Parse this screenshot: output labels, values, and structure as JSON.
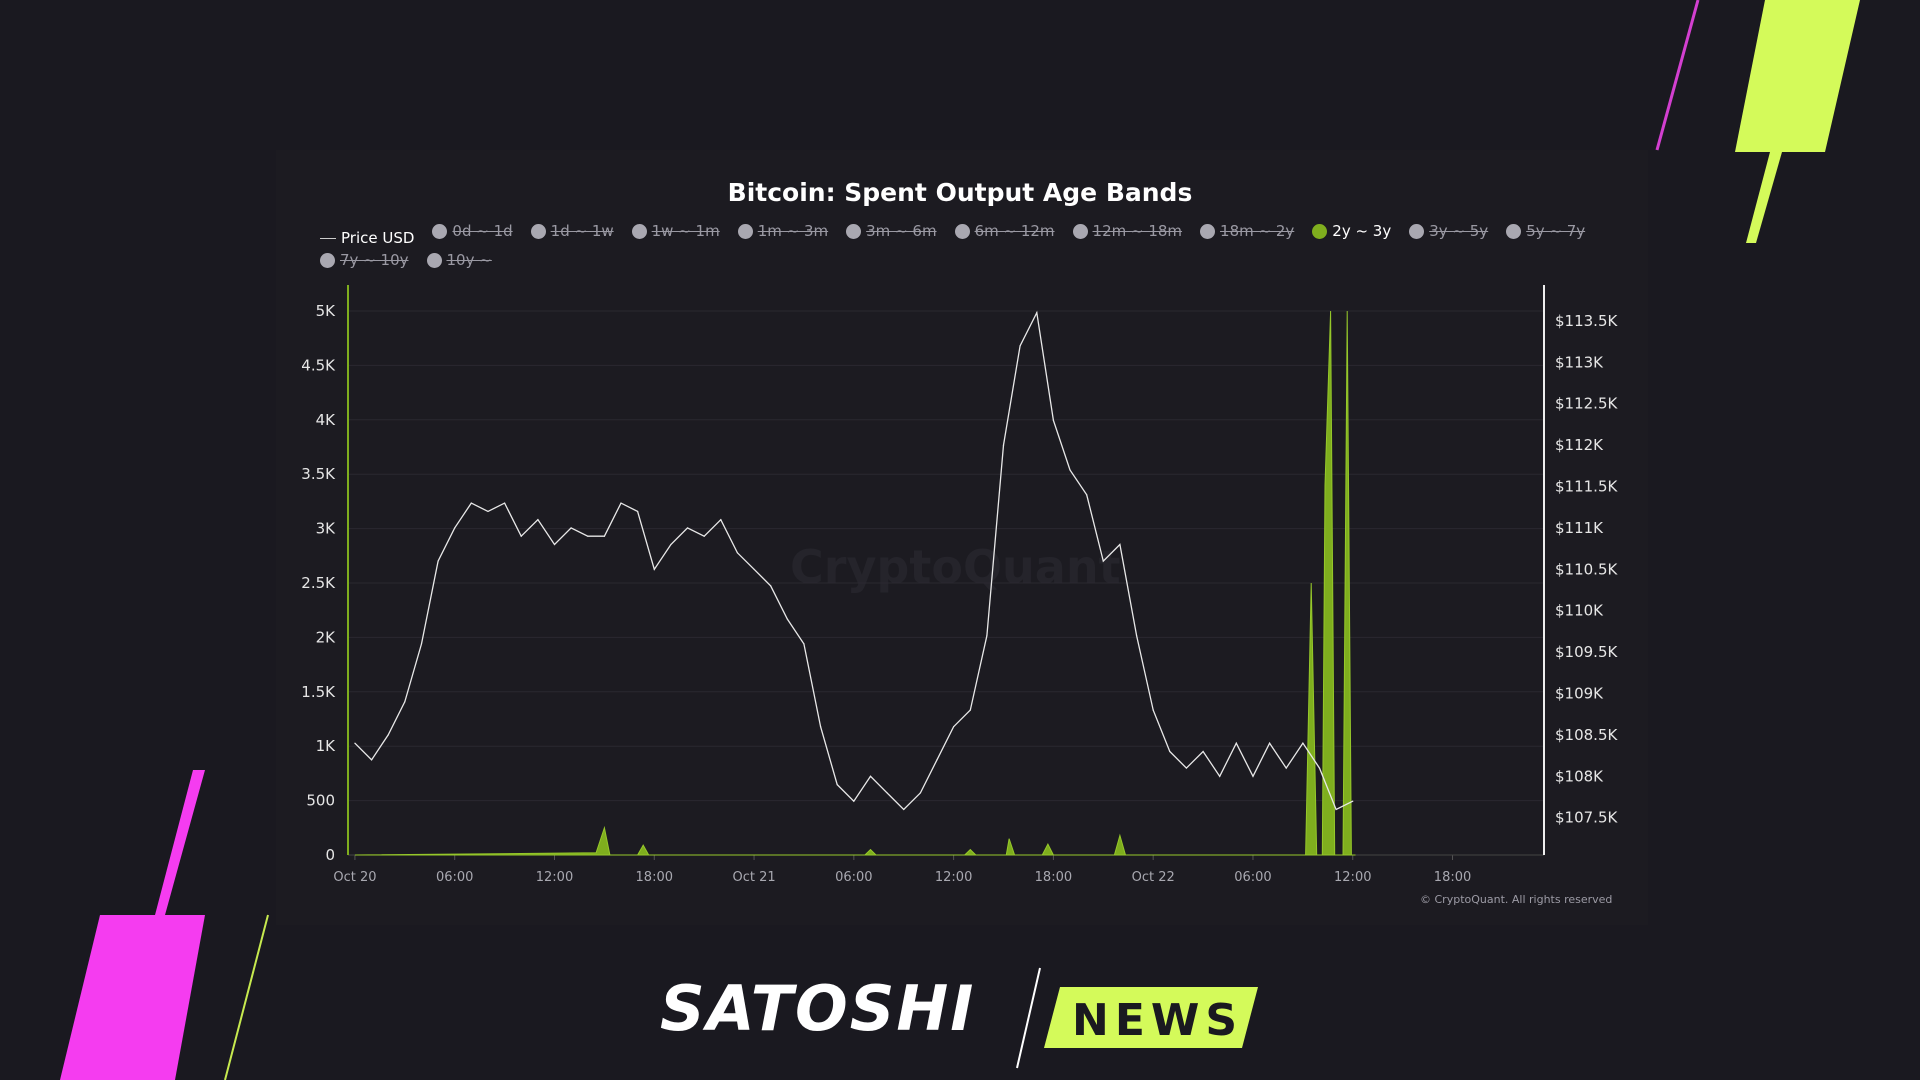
{
  "chart_data": {
    "type": "area+line",
    "title": "Bitcoin: Spent Output Age Bands",
    "legend": [
      {
        "label": "Price USD",
        "active": true,
        "marker": "line"
      },
      {
        "label": "0d ~ 1d",
        "active": false
      },
      {
        "label": "1d ~ 1w",
        "active": false
      },
      {
        "label": "1w ~ 1m",
        "active": false
      },
      {
        "label": "1m ~ 3m",
        "active": false
      },
      {
        "label": "3m ~ 6m",
        "active": false
      },
      {
        "label": "6m ~ 12m",
        "active": false
      },
      {
        "label": "12m ~ 18m",
        "active": false
      },
      {
        "label": "18m ~ 2y",
        "active": false
      },
      {
        "label": "2y ~ 3y",
        "active": true
      },
      {
        "label": "3y ~ 5y",
        "active": false
      },
      {
        "label": "5y ~ 7y",
        "active": false
      },
      {
        "label": "7y ~ 10y",
        "active": false
      },
      {
        "label": "10y ~",
        "active": false
      }
    ],
    "legend_placement": "top-left",
    "grid": true,
    "x_ticks": [
      "Oct 20",
      "06:00",
      "12:00",
      "18:00",
      "Oct 21",
      "06:00",
      "12:00",
      "18:00",
      "Oct 22",
      "06:00",
      "12:00",
      "18:00"
    ],
    "x_tick_times": [
      "10-20 00:00",
      "10-20 06:00",
      "10-20 12:00",
      "10-20 18:00",
      "10-21 00:00",
      "10-21 06:00",
      "10-21 12:00",
      "10-21 18:00",
      "10-22 00:00",
      "10-22 06:00",
      "10-22 12:00",
      "10-22 18:00"
    ],
    "xlim": [
      "10-19 23:35",
      "10-22 23:30"
    ],
    "y_left": {
      "ticks": [
        "0",
        "500",
        "1K",
        "1.5K",
        "2K",
        "2.5K",
        "3K",
        "3.5K",
        "4K",
        "4.5K",
        "5K"
      ],
      "ylim": [
        0,
        5000
      ]
    },
    "y_right": {
      "ticks": [
        "$107.5K",
        "$108K",
        "$108.5K",
        "$109K",
        "$109.5K",
        "$110K",
        "$110.5K",
        "$111K",
        "$111.5K",
        "$112K",
        "$112.5K",
        "$113K",
        "$113.5K"
      ],
      "tick_values": [
        107500,
        108000,
        108500,
        109000,
        109500,
        110000,
        110500,
        111000,
        111500,
        112000,
        112500,
        113000,
        113500
      ],
      "ylim": [
        107050,
        113620
      ]
    },
    "series": [
      {
        "name": "Price USD",
        "axis": "right",
        "color": "#e8e8e8",
        "type": "line",
        "points": [
          [
            "10-20 00:00",
            108400
          ],
          [
            "10-20 01:00",
            108200
          ],
          [
            "10-20 02:00",
            108500
          ],
          [
            "10-20 03:00",
            108900
          ],
          [
            "10-20 04:00",
            109600
          ],
          [
            "10-20 05:00",
            110600
          ],
          [
            "10-20 06:00",
            111000
          ],
          [
            "10-20 07:00",
            111300
          ],
          [
            "10-20 08:00",
            111200
          ],
          [
            "10-20 09:00",
            111300
          ],
          [
            "10-20 10:00",
            110900
          ],
          [
            "10-20 11:00",
            111100
          ],
          [
            "10-20 12:00",
            110800
          ],
          [
            "10-20 13:00",
            111000
          ],
          [
            "10-20 14:00",
            110900
          ],
          [
            "10-20 15:00",
            110900
          ],
          [
            "10-20 16:00",
            111300
          ],
          [
            "10-20 17:00",
            111200
          ],
          [
            "10-20 18:00",
            110500
          ],
          [
            "10-20 19:00",
            110800
          ],
          [
            "10-20 20:00",
            111000
          ],
          [
            "10-20 21:00",
            110900
          ],
          [
            "10-20 22:00",
            111100
          ],
          [
            "10-20 23:00",
            110700
          ],
          [
            "10-21 00:00",
            110500
          ],
          [
            "10-21 01:00",
            110300
          ],
          [
            "10-21 02:00",
            109900
          ],
          [
            "10-21 03:00",
            109600
          ],
          [
            "10-21 04:00",
            108600
          ],
          [
            "10-21 05:00",
            107900
          ],
          [
            "10-21 06:00",
            107700
          ],
          [
            "10-21 07:00",
            108000
          ],
          [
            "10-21 08:00",
            107800
          ],
          [
            "10-21 09:00",
            107600
          ],
          [
            "10-21 10:00",
            107800
          ],
          [
            "10-21 11:00",
            108200
          ],
          [
            "10-21 12:00",
            108600
          ],
          [
            "10-21 13:00",
            108800
          ],
          [
            "10-21 14:00",
            109700
          ],
          [
            "10-21 15:00",
            112000
          ],
          [
            "10-21 16:00",
            113200
          ],
          [
            "10-21 17:00",
            113600
          ],
          [
            "10-21 18:00",
            112300
          ],
          [
            "10-21 19:00",
            111700
          ],
          [
            "10-21 20:00",
            111400
          ],
          [
            "10-21 21:00",
            110600
          ],
          [
            "10-21 22:00",
            110800
          ],
          [
            "10-21 23:00",
            109700
          ],
          [
            "10-22 00:00",
            108800
          ],
          [
            "10-22 01:00",
            108300
          ],
          [
            "10-22 02:00",
            108100
          ],
          [
            "10-22 03:00",
            108300
          ],
          [
            "10-22 04:00",
            108000
          ],
          [
            "10-22 05:00",
            108400
          ],
          [
            "10-22 06:00",
            108000
          ],
          [
            "10-22 07:00",
            108400
          ],
          [
            "10-22 08:00",
            108100
          ],
          [
            "10-22 09:00",
            108400
          ],
          [
            "10-22 10:00",
            108100
          ],
          [
            "10-22 11:00",
            107600
          ],
          [
            "10-22 12:00",
            107700
          ]
        ]
      },
      {
        "name": "2y ~ 3y",
        "axis": "left",
        "color": "#7fae1e",
        "type": "area",
        "points": [
          [
            "10-20 00:00",
            0
          ],
          [
            "10-20 14:30",
            20
          ],
          [
            "10-20 15:00",
            250
          ],
          [
            "10-20 15:20",
            0
          ],
          [
            "10-20 17:00",
            0
          ],
          [
            "10-20 17:20",
            90
          ],
          [
            "10-20 17:40",
            0
          ],
          [
            "10-21 06:40",
            0
          ],
          [
            "10-21 07:00",
            50
          ],
          [
            "10-21 07:20",
            0
          ],
          [
            "10-21 12:40",
            0
          ],
          [
            "10-21 13:00",
            50
          ],
          [
            "10-21 13:20",
            0
          ],
          [
            "10-21 15:10",
            0
          ],
          [
            "10-21 15:20",
            150
          ],
          [
            "10-21 15:40",
            0
          ],
          [
            "10-21 17:20",
            0
          ],
          [
            "10-21 17:40",
            100
          ],
          [
            "10-21 18:00",
            0
          ],
          [
            "10-21 21:40",
            0
          ],
          [
            "10-21 22:00",
            180
          ],
          [
            "10-21 22:20",
            0
          ],
          [
            "10-22 09:10",
            0
          ],
          [
            "10-22 09:30",
            2500
          ],
          [
            "10-22 09:50",
            0
          ],
          [
            "10-22 10:10",
            0
          ],
          [
            "10-22 10:20",
            3400
          ],
          [
            "10-22 10:40",
            5000
          ],
          [
            "10-22 10:55",
            0
          ],
          [
            "10-22 11:25",
            0
          ],
          [
            "10-22 11:40",
            5000
          ],
          [
            "10-22 11:55",
            0
          ],
          [
            "10-22 12:10",
            0
          ]
        ]
      }
    ],
    "watermark": "CryptoQuant",
    "credit": "© CryptoQuant. All rights reserved"
  },
  "branding": {
    "logo_left": "SATOSHI",
    "logo_right": "NEWS",
    "accent_green": "#d4fa5a",
    "accent_pink": "#f53cf0"
  }
}
